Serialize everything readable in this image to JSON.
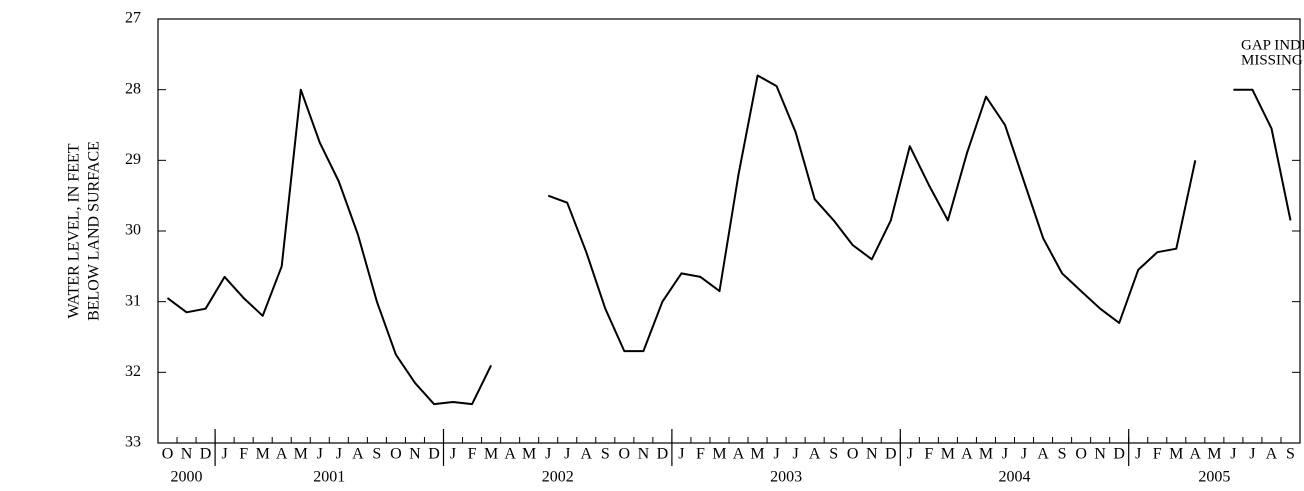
{
  "chart_data": {
    "type": "line",
    "y_label": [
      "WATER LEVEL, IN FEET",
      "BELOW LAND SURFACE"
    ],
    "annotation": [
      "GAP INDICATES",
      "MISSING RECORD"
    ],
    "x": [
      "2000-10",
      "2000-11",
      "2000-12",
      "2001-01",
      "2001-02",
      "2001-03",
      "2001-04",
      "2001-05",
      "2001-06",
      "2001-07",
      "2001-08",
      "2001-09",
      "2001-10",
      "2001-11",
      "2001-12",
      "2002-01",
      "2002-02",
      "2002-03",
      "2002-04",
      "2002-05",
      "2002-06",
      "2002-07",
      "2002-08",
      "2002-09",
      "2002-10",
      "2002-11",
      "2002-12",
      "2003-01",
      "2003-02",
      "2003-03",
      "2003-04",
      "2003-05",
      "2003-06",
      "2003-07",
      "2003-08",
      "2003-09",
      "2003-10",
      "2003-11",
      "2003-12",
      "2004-01",
      "2004-02",
      "2004-03",
      "2004-04",
      "2004-05",
      "2004-06",
      "2004-07",
      "2004-08",
      "2004-09",
      "2004-10",
      "2004-11",
      "2004-12",
      "2005-01",
      "2005-02",
      "2005-03",
      "2005-04",
      "2005-05",
      "2005-06",
      "2005-07",
      "2005-08",
      "2005-09"
    ],
    "x_tick_labels": [
      "O",
      "N",
      "D",
      "J",
      "F",
      "M",
      "A",
      "M",
      "J",
      "J",
      "A",
      "S",
      "O",
      "N",
      "D",
      "J",
      "F",
      "M",
      "A",
      "M",
      "J",
      "J",
      "A",
      "S",
      "O",
      "N",
      "D",
      "J",
      "F",
      "M",
      "A",
      "M",
      "J",
      "J",
      "A",
      "S",
      "O",
      "N",
      "D",
      "J",
      "F",
      "M",
      "A",
      "M",
      "J",
      "J",
      "A",
      "S",
      "O",
      "N",
      "D",
      "J",
      "F",
      "M",
      "A",
      "M",
      "J",
      "J",
      "A",
      "S"
    ],
    "years": [
      "2000",
      "2001",
      "2002",
      "2003",
      "2004",
      "2005"
    ],
    "values": [
      30.95,
      31.15,
      31.1,
      30.65,
      30.95,
      31.2,
      30.5,
      28.0,
      28.75,
      29.3,
      30.05,
      31.0,
      31.75,
      32.15,
      32.45,
      32.42,
      32.45,
      31.9,
      null,
      null,
      29.5,
      29.6,
      30.3,
      31.1,
      31.7,
      31.7,
      31.0,
      30.6,
      30.65,
      30.85,
      29.2,
      27.8,
      27.95,
      28.6,
      29.55,
      29.85,
      30.2,
      30.4,
      29.85,
      28.8,
      29.35,
      29.85,
      28.9,
      28.1,
      28.5,
      29.3,
      30.1,
      30.6,
      30.85,
      31.1,
      31.3,
      30.55,
      30.3,
      30.25,
      29.0,
      null,
      28.0,
      28.0,
      28.55,
      29.85
    ],
    "color": "#000000",
    "ylim": [
      27,
      33
    ],
    "yticks": [
      27,
      28,
      29,
      30,
      31,
      32,
      33
    ],
    "y_inverted": true
  }
}
